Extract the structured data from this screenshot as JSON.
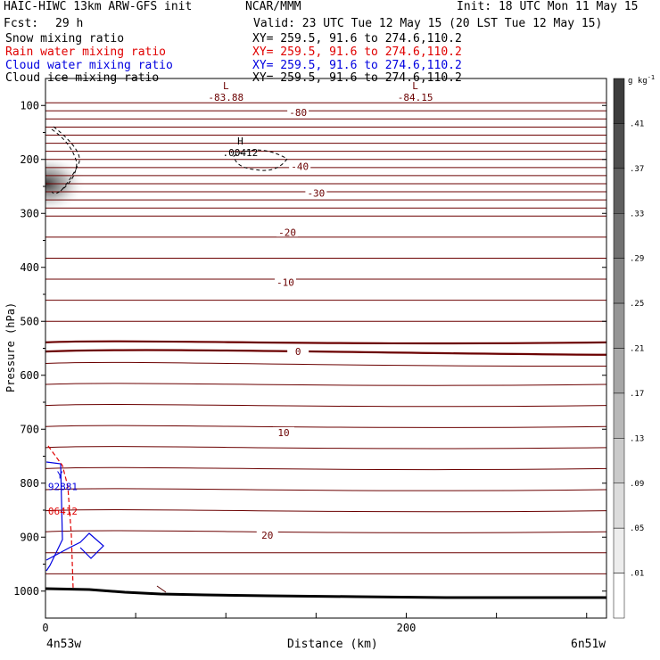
{
  "header": {
    "model": "HAIC-HIWC 13km ARW-GFS init",
    "org": "NCAR/MMM",
    "init": "Init: 18 UTC Mon 11 May 15",
    "fcst_label": "Fcst:",
    "fcst_value": "29 h",
    "valid": "Valid: 23 UTC Tue 12 May 15 (20 LST Tue 12 May 15)"
  },
  "fields": [
    {
      "name": "Snow mixing ratio",
      "xy": "XY= 259.5, 91.6 to 274.6,110.2",
      "color": "#000000"
    },
    {
      "name": "Rain water mixing ratio",
      "xy": "XY= 259.5, 91.6 to 274.6,110.2",
      "color": "#e00000"
    },
    {
      "name": "Cloud water mixing ratio",
      "xy": "XY= 259.5, 91.6 to 274.6,110.2",
      "color": "#0000e0"
    },
    {
      "name": "Cloud ice mixing ratio",
      "xy": "XY= 259.5, 91.6 to 274.6,110.2",
      "color": "#000000"
    }
  ],
  "chart_data": {
    "type": "contour cross-section",
    "xlabel": "Distance (km)",
    "ylabel": "Pressure (hPa)",
    "x_ticks": [
      0,
      200
    ],
    "y_ticks": [
      100,
      200,
      300,
      400,
      500,
      600,
      700,
      800,
      900,
      1000
    ],
    "xlim": [
      0,
      311
    ],
    "ylim": [
      50,
      1050
    ],
    "y_scale": "linear, reversed",
    "x_start_label": "4n53w",
    "x_end_label": "6n51w",
    "colorbar": {
      "unit": "g kg",
      "unit_sup": "-1",
      "labels": [
        ".41",
        ".37",
        ".33",
        ".29",
        ".25",
        ".21",
        ".17",
        ".13",
        ".09",
        ".05",
        ".01"
      ]
    },
    "isotherm_labels": [
      {
        "text": "-80",
        "x_km": 140,
        "p": 113
      },
      {
        "text": "-40",
        "x_km": 141,
        "p": 213
      },
      {
        "text": "-30",
        "x_km": 150,
        "p": 262
      },
      {
        "text": "-20",
        "x_km": 134,
        "p": 335
      },
      {
        "text": "-10",
        "x_km": 133,
        "p": 428
      },
      {
        "text": "0",
        "x_km": 140,
        "p": 556
      },
      {
        "text": "10",
        "x_km": 132,
        "p": 706
      },
      {
        "text": "20",
        "x_km": 123,
        "p": 896
      }
    ],
    "markers": [
      {
        "symbol": "L",
        "value": "-83.88",
        "x_km": 100,
        "p": 85
      },
      {
        "symbol": "L",
        "value": "-84.15",
        "x_km": 205,
        "p": 85
      },
      {
        "symbol": "H",
        "value": ".00412",
        "x_km": 108,
        "p": 187
      },
      {
        "symbol": "Y",
        "value": ".92881",
        "x_km": 8,
        "p": 806
      },
      {
        "symbol": "",
        "value": ".06412",
        "x_km": 8,
        "p": 852
      }
    ]
  }
}
